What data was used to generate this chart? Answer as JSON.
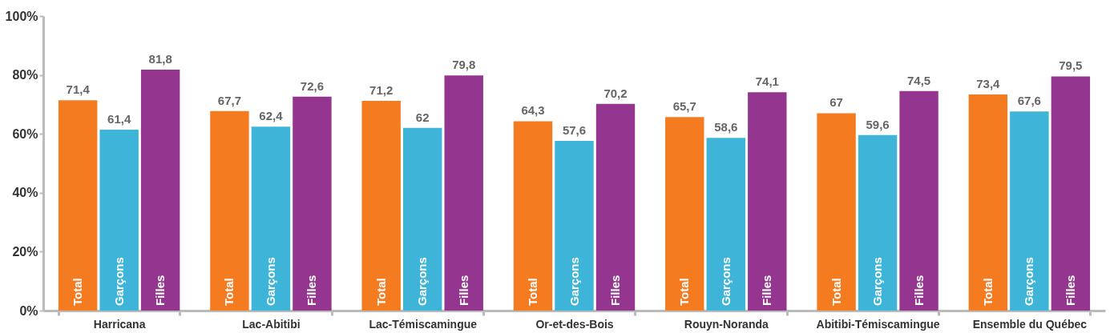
{
  "chart_data": {
    "type": "bar",
    "categories": [
      "Harricana",
      "Lac-Abitibi",
      "Lac-Témiscamingue",
      "Or-et-des-Bois",
      "Rouyn-Noranda",
      "Abitibi-Témiscamingue",
      "Ensemble du Québec"
    ],
    "series": [
      {
        "name": "Total",
        "color": "#f47b20",
        "values": [
          71.4,
          67.7,
          71.2,
          64.3,
          65.7,
          67,
          73.4
        ],
        "value_labels": [
          "71,4",
          "67,7",
          "71,2",
          "64,3",
          "65,7",
          "67",
          "73,4"
        ]
      },
      {
        "name": "Garçons",
        "color": "#3db4d8",
        "values": [
          61.4,
          62.4,
          62,
          57.6,
          58.6,
          59.6,
          67.6
        ],
        "value_labels": [
          "61,4",
          "62,4",
          "62",
          "57,6",
          "58,6",
          "59,6",
          "67,6"
        ]
      },
      {
        "name": "Filles",
        "color": "#94368f",
        "values": [
          81.8,
          72.6,
          79.8,
          70.2,
          74.1,
          74.5,
          79.5
        ],
        "value_labels": [
          "81,8",
          "72,6",
          "79,8",
          "70,2",
          "74,1",
          "74,5",
          "79,5"
        ]
      }
    ],
    "ylim": [
      0,
      100
    ],
    "yticks": [
      {
        "value": 0,
        "label": "0%"
      },
      {
        "value": 20,
        "label": "20%"
      },
      {
        "value": 40,
        "label": "40%"
      },
      {
        "value": 60,
        "label": "60%"
      },
      {
        "value": 80,
        "label": "80%"
      },
      {
        "value": 100,
        "label": "100%"
      }
    ],
    "grid": false,
    "legend": false
  }
}
